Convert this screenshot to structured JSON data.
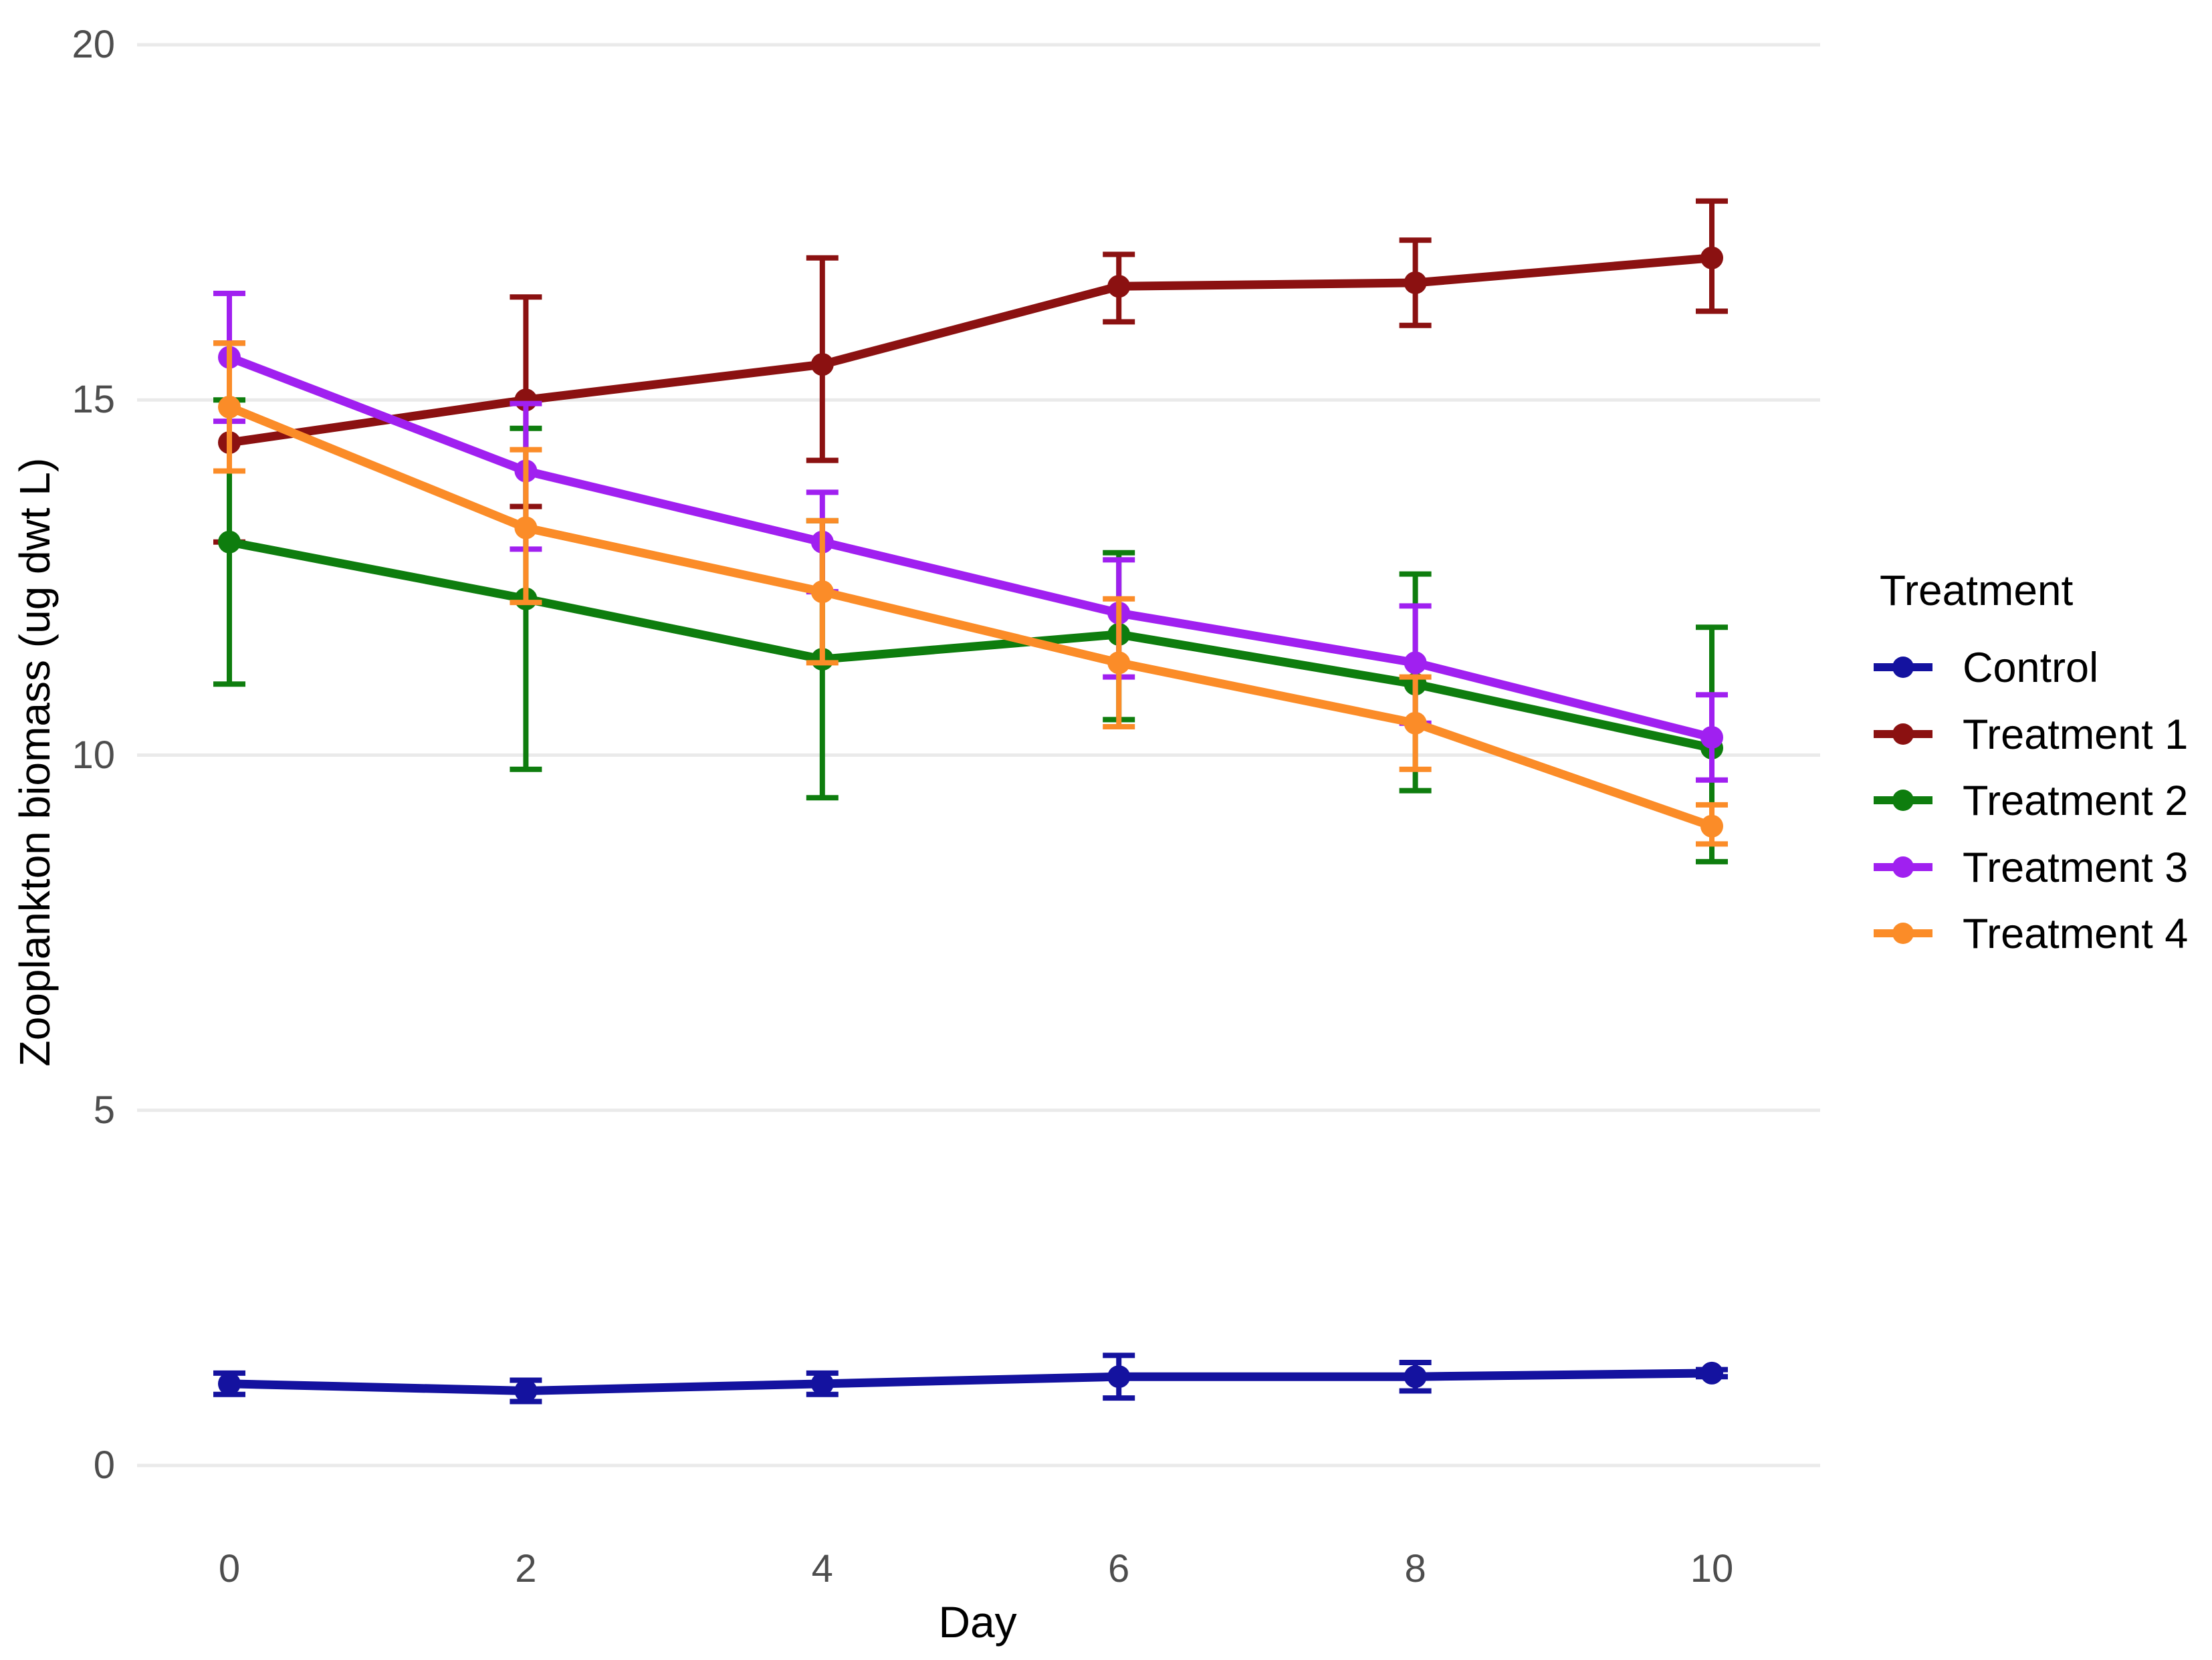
{
  "figure": {
    "background": "#FFFFFF"
  },
  "chart_data": {
    "type": "line",
    "title": "",
    "xlabel": "Day",
    "ylabel": "Zooplankton biomass (ug dwt L)",
    "x": [
      0,
      2,
      4,
      6,
      8,
      10
    ],
    "xlim": [
      -0.62,
      10.73
    ],
    "ylim": [
      0,
      20
    ],
    "x_ticks": [
      "0",
      "2",
      "4",
      "6",
      "8",
      "10"
    ],
    "y_ticks": [
      "0",
      "5",
      "10",
      "15",
      "20"
    ],
    "grid": {
      "horizontal_major": true,
      "vertical": false,
      "color": "#EAEAEA"
    },
    "tick_label_color": "#4D4D4D",
    "legend": {
      "title": "Treatment",
      "position": "right"
    },
    "error_bars": true,
    "series": [
      {
        "name": "Control",
        "color": "#14129F",
        "values": [
          1.15,
          1.05,
          1.15,
          1.25,
          1.25,
          1.3
        ],
        "err_low": [
          1.0,
          0.9,
          1.0,
          0.95,
          1.05,
          1.25
        ],
        "err_high": [
          1.3,
          1.2,
          1.3,
          1.55,
          1.45,
          1.35
        ]
      },
      {
        "name": "Treatment 1",
        "color": "#8B1111",
        "values": [
          14.4,
          15.0,
          15.5,
          16.6,
          16.65,
          17.0
        ],
        "err_low": [
          13.0,
          13.5,
          14.15,
          16.1,
          16.05,
          16.25
        ],
        "err_high": [
          15.8,
          16.45,
          17.0,
          17.05,
          17.25,
          17.8
        ]
      },
      {
        "name": "Treatment 2",
        "color": "#0E7D0E",
        "values": [
          13.0,
          12.2,
          11.35,
          11.7,
          11.0,
          10.1
        ],
        "err_low": [
          11.0,
          9.8,
          9.4,
          10.5,
          9.5,
          8.5
        ],
        "err_high": [
          15.0,
          14.6,
          13.3,
          12.85,
          12.55,
          11.8
        ]
      },
      {
        "name": "Treatment 3",
        "color": "#A020F0",
        "values": [
          15.6,
          14.0,
          13.0,
          12.0,
          11.3,
          10.25
        ],
        "err_low": [
          14.7,
          12.9,
          12.3,
          11.1,
          10.45,
          9.65
        ],
        "err_high": [
          16.5,
          14.95,
          13.7,
          12.75,
          12.1,
          10.85
        ]
      },
      {
        "name": "Treatment 4",
        "color": "#FB8C28",
        "values": [
          14.9,
          13.2,
          12.3,
          11.3,
          10.45,
          9.0
        ],
        "err_low": [
          14.0,
          12.15,
          11.3,
          10.4,
          9.8,
          8.75
        ],
        "err_high": [
          15.8,
          14.3,
          13.3,
          12.2,
          11.1,
          9.3
        ]
      }
    ]
  }
}
